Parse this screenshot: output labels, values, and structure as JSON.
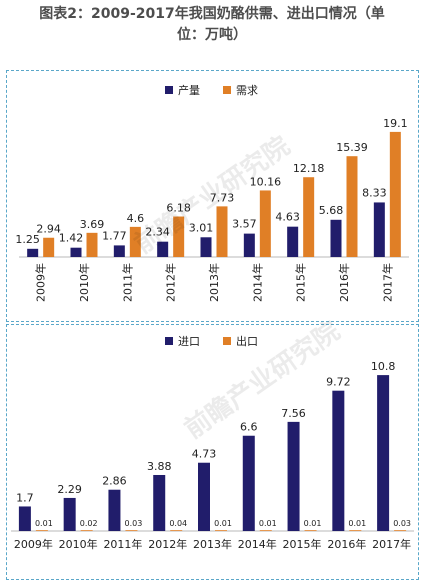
{
  "title_line1": "图表2：2009-2017年我国奶酪供需、进出口情况（单",
  "title_line2": "位：万吨）",
  "watermark": "前瞻产业研究院",
  "colors": {
    "navy": "#211d6b",
    "orange": "#e07f26",
    "axis": "#b8b8b8"
  },
  "chart_data": [
    {
      "type": "bar",
      "categories": [
        "2009年",
        "2010年",
        "2011年",
        "2012年",
        "2013年",
        "2014年",
        "2015年",
        "2016年",
        "2017年"
      ],
      "ylim": [
        0,
        20
      ],
      "legend_position": "top-center",
      "series": [
        {
          "name": "产量",
          "color": "#211d6b",
          "values": [
            1.25,
            1.42,
            1.77,
            2.34,
            3.01,
            3.57,
            4.63,
            5.68,
            8.33
          ]
        },
        {
          "name": "需求",
          "color": "#e07f26",
          "values": [
            2.94,
            3.69,
            4.6,
            6.18,
            7.73,
            10.16,
            12.18,
            15.39,
            19.1
          ]
        }
      ]
    },
    {
      "type": "bar",
      "categories": [
        "2009年",
        "2010年",
        "2011年",
        "2012年",
        "2013年",
        "2014年",
        "2015年",
        "2016年",
        "2017年"
      ],
      "ylim": [
        0,
        11.5
      ],
      "legend_position": "top-center",
      "series": [
        {
          "name": "进口",
          "color": "#211d6b",
          "values": [
            1.7,
            2.29,
            2.86,
            3.88,
            4.73,
            6.6,
            7.56,
            9.72,
            10.8
          ]
        },
        {
          "name": "出口",
          "color": "#e07f26",
          "values": [
            0.01,
            0.02,
            0.03,
            0.04,
            0.01,
            0.01,
            0.01,
            0.01,
            0.03
          ]
        }
      ]
    }
  ]
}
